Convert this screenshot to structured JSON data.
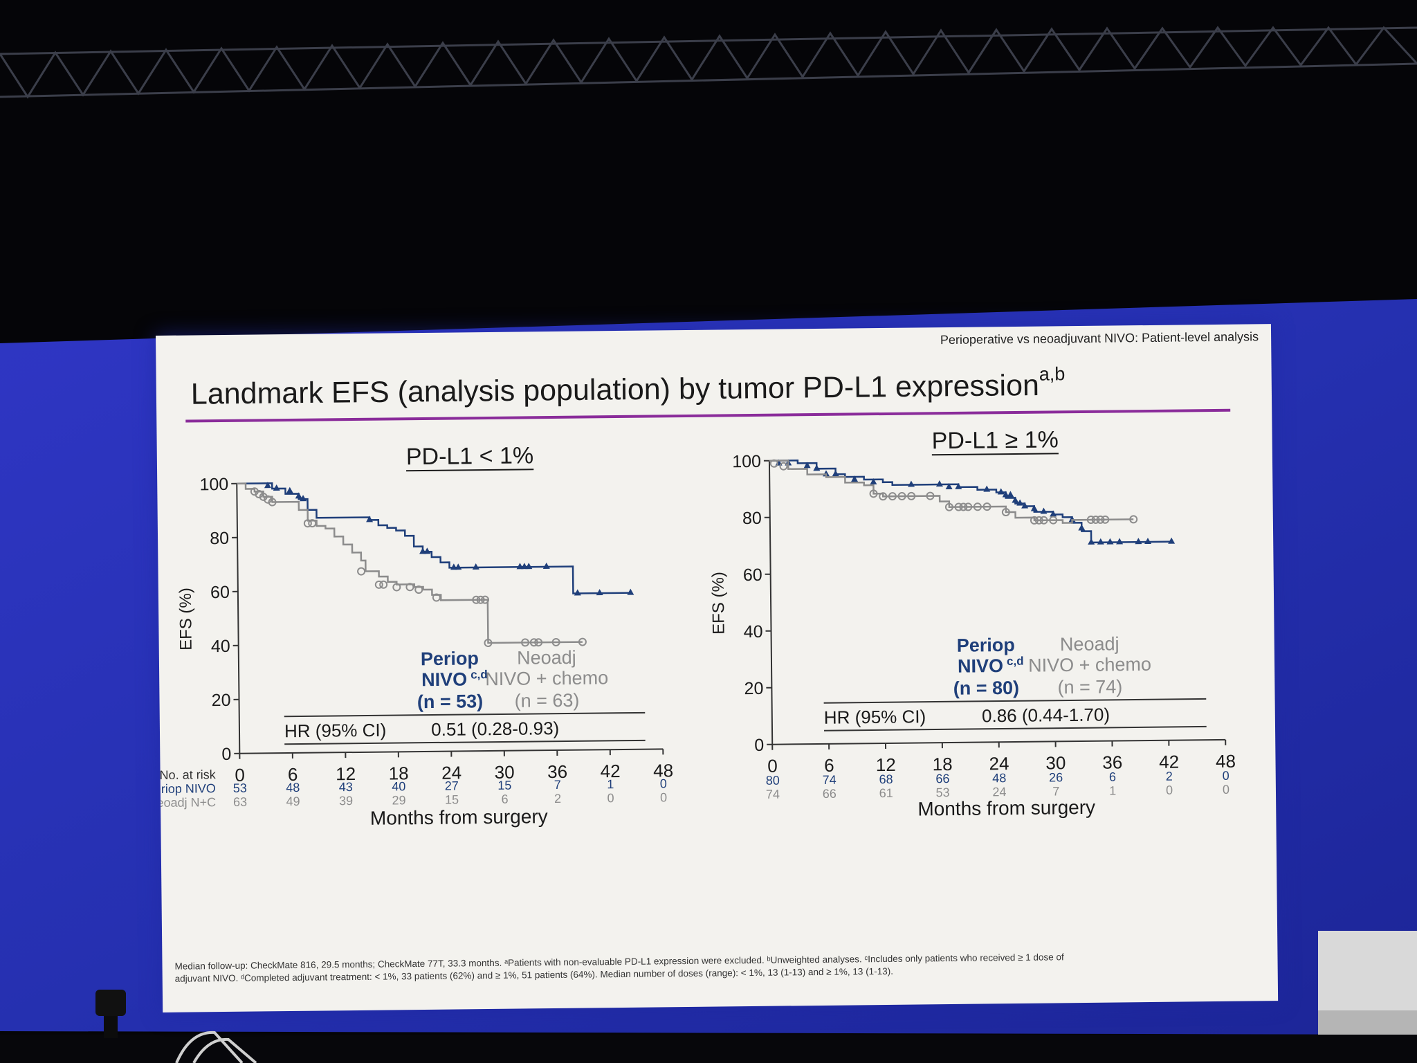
{
  "slide": {
    "header_note": "Perioperative vs neoadjuvant NIVO: Patient-level analysis",
    "title": "Landmark EFS (analysis population) by tumor PD-L1 expression",
    "title_superscript": "a,b",
    "footnote_line1": "Median follow-up: CheckMate 816, 29.5 months; CheckMate 77T, 33.3 months. ᵃPatients with non-evaluable PD-L1 expression were excluded. ᵇUnweighted analyses. ᶜIncludes only patients who received ≥ 1 dose of",
    "footnote_line2": "adjuvant NIVO. ᵈCompleted adjuvant treatment: < 1%, 33 patients (62%) and ≥ 1%, 51 patients (64%). Median number of doses (range): < 1%, 13 (1-13) and ≥ 1%, 13 (1-13)."
  },
  "colors": {
    "nivo": "#1f3f7a",
    "neoadj": "#8c8c8c",
    "accent_rule": "#8a2c9a",
    "screen_blue": "#2a35b8"
  },
  "chart_data": [
    {
      "type": "line",
      "title": "PD-L1 < 1%",
      "xlabel": "Months from surgery",
      "ylabel": "EFS (%)",
      "xlim": [
        0,
        48
      ],
      "ylim": [
        0,
        100
      ],
      "x_ticks": [
        "0",
        "6",
        "12",
        "18",
        "24",
        "30",
        "36",
        "42",
        "48"
      ],
      "y_ticks": [
        "0",
        "20",
        "40",
        "60",
        "80",
        "100"
      ],
      "series": [
        {
          "name": "Periop NIVO",
          "label_line1": "Periop",
          "label_line2": "NIVO",
          "label_sup": "c,d",
          "n_label": "(n = 53)",
          "marker": "triangle",
          "points": [
            [
              0,
              100
            ],
            [
              2.5,
              100
            ],
            [
              4,
              98
            ],
            [
              5.5,
              96
            ],
            [
              7,
              94
            ],
            [
              8,
              90
            ],
            [
              9,
              87
            ],
            [
              12,
              87
            ],
            [
              15,
              86
            ],
            [
              16,
              84
            ],
            [
              17,
              83
            ],
            [
              18,
              82
            ],
            [
              19,
              80
            ],
            [
              20,
              76
            ],
            [
              21,
              74
            ],
            [
              22,
              72
            ],
            [
              23,
              70
            ],
            [
              24,
              68
            ],
            [
              37.5,
              68
            ],
            [
              38,
              58
            ],
            [
              44.5,
              58
            ]
          ],
          "censors": [
            [
              3.5,
              99
            ],
            [
              4.5,
              98
            ],
            [
              6,
              97
            ],
            [
              7,
              95
            ],
            [
              7.5,
              94
            ],
            [
              15,
              86
            ],
            [
              21,
              74
            ],
            [
              21.5,
              74
            ],
            [
              24.5,
              68
            ],
            [
              25,
              68
            ],
            [
              27,
              68
            ],
            [
              32,
              68
            ],
            [
              32.5,
              68
            ],
            [
              33,
              68
            ],
            [
              35,
              68
            ],
            [
              38.5,
              58
            ],
            [
              41,
              58
            ],
            [
              44.5,
              58
            ]
          ]
        },
        {
          "name": "Neoadj NIVO + chemo",
          "label_line1": "Neoadj",
          "label_line2": "NIVO + chemo",
          "n_label": "(n = 63)",
          "marker": "circle",
          "points": [
            [
              0,
              100
            ],
            [
              1,
              98
            ],
            [
              2,
              97
            ],
            [
              3,
              95
            ],
            [
              4,
              93
            ],
            [
              6,
              93
            ],
            [
              7,
              90
            ],
            [
              8,
              86
            ],
            [
              9,
              84
            ],
            [
              10,
              83
            ],
            [
              11,
              80
            ],
            [
              12,
              77
            ],
            [
              13,
              74
            ],
            [
              14,
              71
            ],
            [
              14.5,
              67
            ],
            [
              16,
              65
            ],
            [
              17,
              63
            ],
            [
              18,
              62
            ],
            [
              20,
              61
            ],
            [
              21,
              60
            ],
            [
              22,
              58
            ],
            [
              23,
              56
            ],
            [
              28,
              56
            ],
            [
              28.3,
              40
            ],
            [
              39,
              40
            ]
          ],
          "censors": [
            [
              2,
              97
            ],
            [
              2.5,
              96
            ],
            [
              3,
              95
            ],
            [
              3.5,
              94
            ],
            [
              4,
              93
            ],
            [
              8,
              85
            ],
            [
              8.5,
              85
            ],
            [
              14,
              67
            ],
            [
              16,
              62
            ],
            [
              16.5,
              62
            ],
            [
              18,
              61
            ],
            [
              19.5,
              61
            ],
            [
              20.5,
              60
            ],
            [
              22.5,
              57
            ],
            [
              27,
              56
            ],
            [
              27.5,
              56
            ],
            [
              28,
              56
            ],
            [
              28.3,
              40
            ],
            [
              32.5,
              40
            ],
            [
              33.5,
              40
            ],
            [
              34,
              40
            ],
            [
              36,
              40
            ],
            [
              39,
              40
            ]
          ]
        }
      ],
      "hr_label": "HR (95% CI)",
      "hr_value": "0.51 (0.28-0.93)",
      "risk_table": {
        "header": "No. at risk",
        "rows": [
          {
            "label": "Periop NIVO",
            "values": [
              "53",
              "48",
              "43",
              "40",
              "27",
              "15",
              "7",
              "1",
              "0"
            ]
          },
          {
            "label": "Neoadj N+C",
            "values": [
              "63",
              "49",
              "39",
              "29",
              "15",
              "6",
              "2",
              "0",
              "0"
            ]
          }
        ]
      }
    },
    {
      "type": "line",
      "title": "PD-L1 ≥ 1%",
      "xlabel": "Months from surgery",
      "ylabel": "EFS (%)",
      "xlim": [
        0,
        48
      ],
      "ylim": [
        0,
        100
      ],
      "x_ticks": [
        "0",
        "6",
        "12",
        "18",
        "24",
        "30",
        "36",
        "42",
        "48"
      ],
      "y_ticks": [
        "0",
        "20",
        "40",
        "60",
        "80",
        "100"
      ],
      "series": [
        {
          "name": "Periop NIVO",
          "label_line1": "Periop",
          "label_line2": "NIVO",
          "label_sup": "c,d",
          "n_label": "(n = 80)",
          "marker": "triangle",
          "points": [
            [
              0,
              100
            ],
            [
              3,
              99
            ],
            [
              5,
              97
            ],
            [
              7,
              95
            ],
            [
              8,
              94
            ],
            [
              10,
              93
            ],
            [
              12,
              92
            ],
            [
              13,
              91
            ],
            [
              16,
              91
            ],
            [
              18,
              91
            ],
            [
              20,
              90
            ],
            [
              22,
              89
            ],
            [
              24,
              88
            ],
            [
              25,
              86
            ],
            [
              26,
              84
            ],
            [
              27,
              83
            ],
            [
              28,
              81
            ],
            [
              30,
              80
            ],
            [
              31,
              79
            ],
            [
              32,
              77
            ],
            [
              33,
              74
            ],
            [
              34,
              70
            ],
            [
              42.5,
              70
            ]
          ],
          "censors": [
            [
              1,
              99
            ],
            [
              2,
              99
            ],
            [
              4,
              98
            ],
            [
              5,
              97
            ],
            [
              6,
              95
            ],
            [
              7,
              95
            ],
            [
              9,
              93
            ],
            [
              11,
              92
            ],
            [
              15,
              91
            ],
            [
              18,
              91
            ],
            [
              19,
              90
            ],
            [
              20,
              90
            ],
            [
              23,
              89
            ],
            [
              24.5,
              88
            ],
            [
              25,
              87
            ],
            [
              25.5,
              87
            ],
            [
              26,
              85
            ],
            [
              26.5,
              84
            ],
            [
              27,
              83
            ],
            [
              28,
              82
            ],
            [
              29,
              81
            ],
            [
              30,
              80
            ],
            [
              32,
              78
            ],
            [
              33,
              75
            ],
            [
              34,
              70
            ],
            [
              35,
              70
            ],
            [
              36,
              70
            ],
            [
              37,
              70
            ],
            [
              39,
              70
            ],
            [
              40,
              70
            ],
            [
              42.5,
              70
            ]
          ]
        },
        {
          "name": "Neoadj NIVO + chemo",
          "label_line1": "Neoadj",
          "label_line2": "NIVO + chemo",
          "n_label": "(n = 74)",
          "marker": "circle",
          "points": [
            [
              0,
              100
            ],
            [
              2,
              97
            ],
            [
              4,
              95
            ],
            [
              6,
              94
            ],
            [
              8,
              92
            ],
            [
              10,
              91
            ],
            [
              11,
              88
            ],
            [
              12,
              87
            ],
            [
              17,
              87
            ],
            [
              18,
              85
            ],
            [
              19,
              83
            ],
            [
              25,
              81
            ],
            [
              26,
              79
            ],
            [
              28,
              78
            ],
            [
              30,
              78
            ],
            [
              31,
              77
            ],
            [
              32,
              78
            ],
            [
              38.5,
              78
            ]
          ],
          "censors": [
            [
              0.5,
              99
            ],
            [
              1.5,
              98
            ],
            [
              11,
              88
            ],
            [
              12,
              87
            ],
            [
              13,
              87
            ],
            [
              14,
              87
            ],
            [
              15,
              87
            ],
            [
              17,
              87
            ],
            [
              19,
              83
            ],
            [
              20,
              83
            ],
            [
              20.5,
              83
            ],
            [
              21,
              83
            ],
            [
              22,
              83
            ],
            [
              23,
              83
            ],
            [
              25,
              81
            ],
            [
              28,
              78
            ],
            [
              28.5,
              78
            ],
            [
              29,
              78
            ],
            [
              30,
              78
            ],
            [
              34,
              78
            ],
            [
              34.5,
              78
            ],
            [
              35,
              78
            ],
            [
              35.5,
              78
            ],
            [
              38.5,
              78
            ]
          ]
        }
      ],
      "hr_label": "HR (95% CI)",
      "hr_value": "0.86 (0.44-1.70)",
      "risk_table": {
        "header": "",
        "rows": [
          {
            "label": "",
            "values": [
              "80",
              "74",
              "68",
              "66",
              "48",
              "26",
              "6",
              "2",
              "0"
            ]
          },
          {
            "label": "",
            "values": [
              "74",
              "66",
              "61",
              "53",
              "24",
              "7",
              "1",
              "0",
              "0"
            ]
          }
        ]
      }
    }
  ]
}
